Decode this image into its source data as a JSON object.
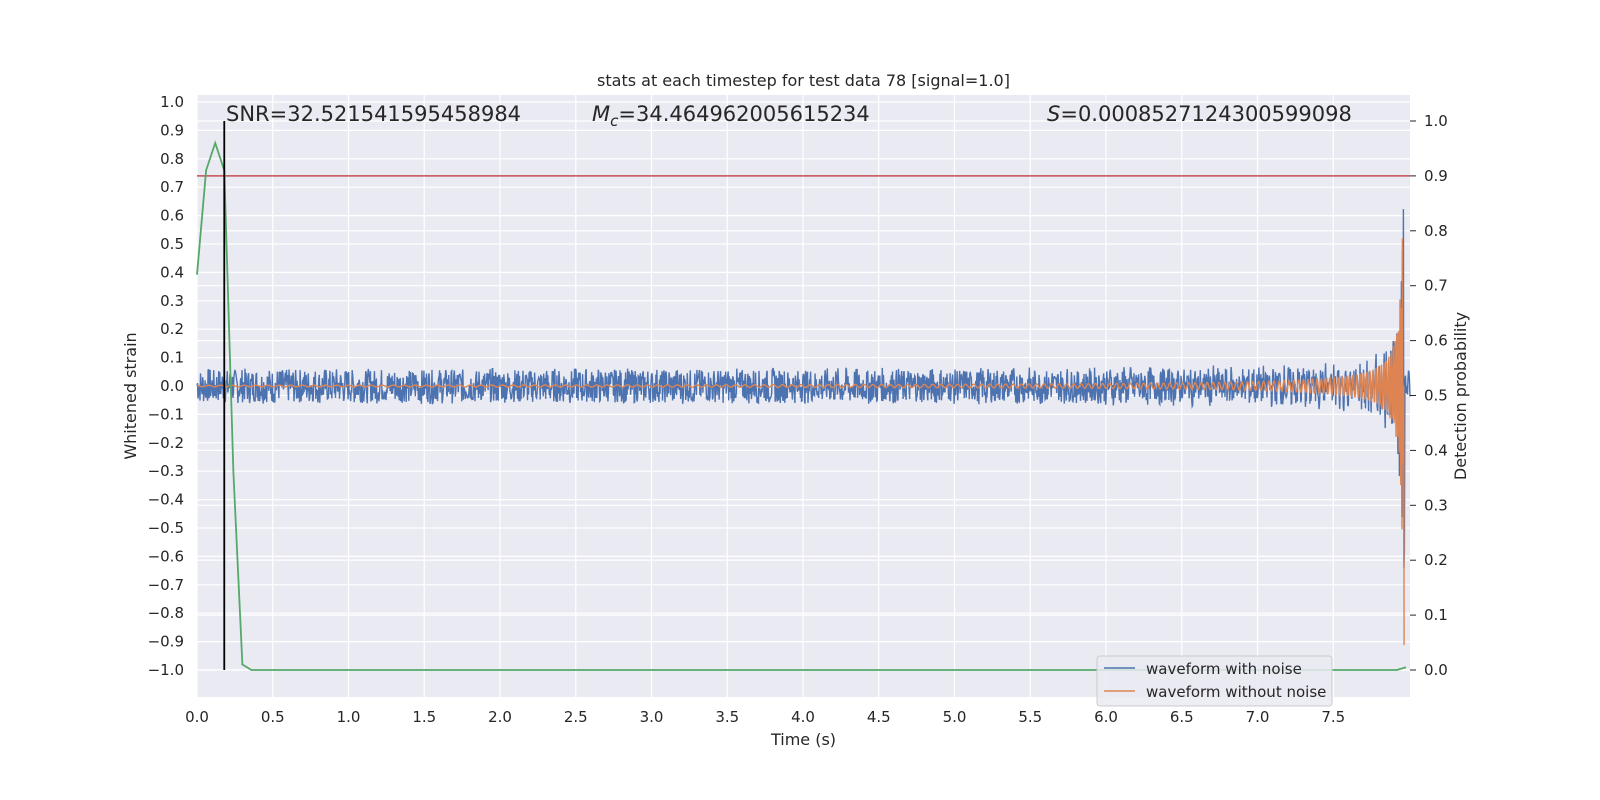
{
  "chart_data": {
    "type": "line",
    "title": "stats at each timestep for test data 78 [signal=1.0]",
    "xlabel": "Time (s)",
    "ylabel": "Whitened strain",
    "y2label": "Detection probability",
    "xlim": [
      0.0,
      8.0
    ],
    "ylim": [
      -1.0,
      1.0
    ],
    "y2lim": [
      0.0,
      1.0
    ],
    "x_ticks": [
      "0.0",
      "0.5",
      "1.0",
      "1.5",
      "2.0",
      "2.5",
      "3.0",
      "3.5",
      "4.0",
      "4.5",
      "5.0",
      "5.5",
      "6.0",
      "6.5",
      "7.0",
      "7.5"
    ],
    "y_ticks": [
      "1.0",
      "0.9",
      "0.8",
      "0.7",
      "0.6",
      "0.5",
      "0.4",
      "0.3",
      "0.2",
      "0.1",
      "0.0",
      "−0.1",
      "−0.2",
      "−0.3",
      "−0.4",
      "−0.5",
      "−0.6",
      "−0.7",
      "−0.8",
      "−0.9",
      "−1.0"
    ],
    "y2_ticks": [
      "1.0",
      "0.9",
      "0.8",
      "0.7",
      "0.6",
      "0.5",
      "0.4",
      "0.3",
      "0.2",
      "0.1",
      "0.0"
    ],
    "grid": true,
    "legend_position": "lower-right",
    "annotations": {
      "snr": "SNR=32.521541595458984",
      "mc_symbol": "M",
      "mc_sub": "c",
      "mc_value": "=34.464962005615234",
      "s_symbol": "S",
      "s_value": "=0.0008527124300599098"
    },
    "series": [
      {
        "name": "waveform with noise",
        "color": "#4c72b0",
        "noise_amplitude": 0.06,
        "chirp_peak_amplitude": 0.6,
        "merger_time": 7.97
      },
      {
        "name": "waveform without noise",
        "color": "#dd8452",
        "chirp_peak_amplitude": 0.93,
        "merger_time": 7.97
      },
      {
        "name": "detection probability",
        "color": "#55a868",
        "axis": "right",
        "x": [
          0.0,
          0.06,
          0.12,
          0.18,
          0.24,
          0.3,
          0.36,
          7.92,
          7.98
        ],
        "y": [
          0.72,
          0.91,
          0.96,
          0.91,
          0.36,
          0.01,
          0.0,
          0.0,
          0.005
        ]
      }
    ],
    "threshold": {
      "value": 0.9,
      "axis": "right",
      "color": "#c44e52"
    },
    "marker_line": {
      "x": 0.18,
      "color": "#000000"
    }
  }
}
